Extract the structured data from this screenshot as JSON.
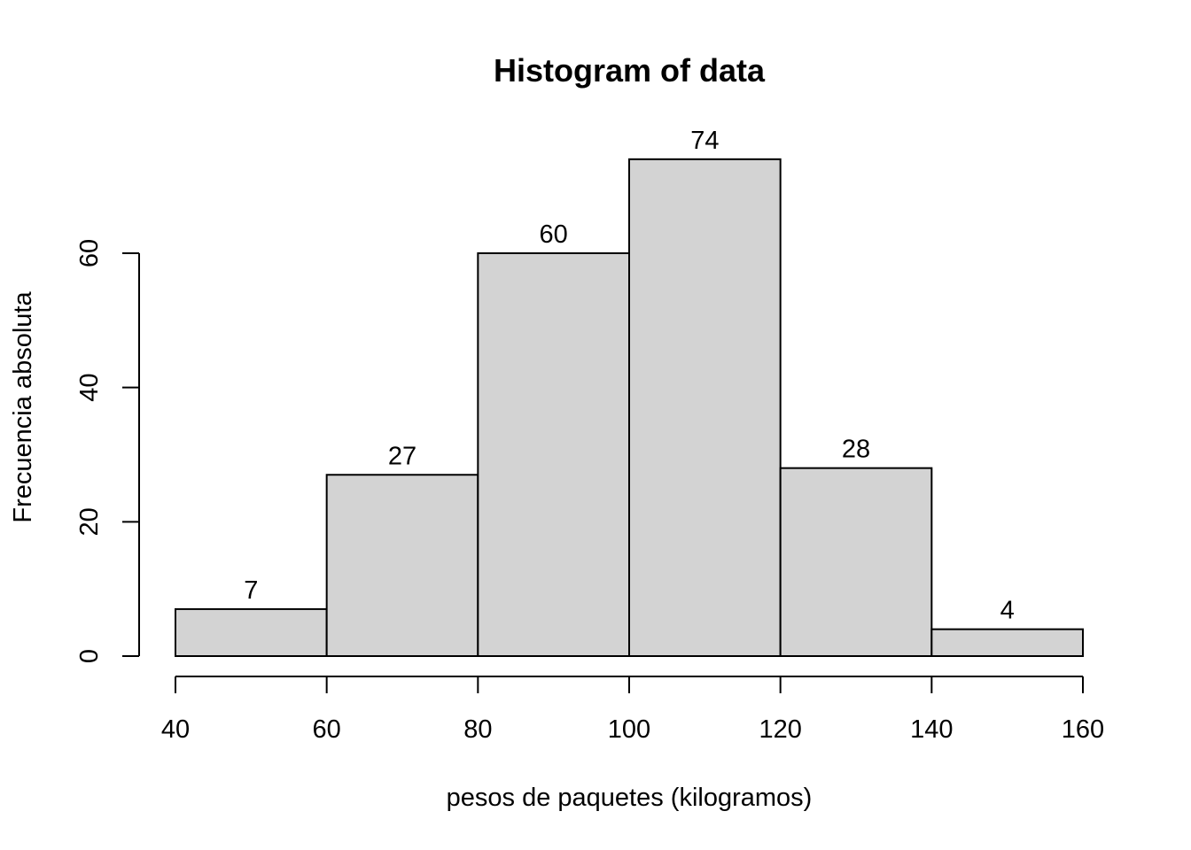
{
  "chart_data": {
    "type": "bar",
    "title": "Histogram of data",
    "xlabel": "pesos de paquetes (kilogramos)",
    "ylabel": "Frecuencia absoluta",
    "bins": [
      {
        "start": 40,
        "end": 60,
        "count": 7
      },
      {
        "start": 60,
        "end": 80,
        "count": 27
      },
      {
        "start": 80,
        "end": 100,
        "count": 60
      },
      {
        "start": 100,
        "end": 120,
        "count": 74
      },
      {
        "start": 120,
        "end": 140,
        "count": 28
      },
      {
        "start": 140,
        "end": 160,
        "count": 4
      }
    ],
    "xticks": [
      40,
      60,
      80,
      100,
      120,
      140,
      160
    ],
    "yticks": [
      0,
      20,
      40,
      60
    ],
    "xlim": [
      40,
      160
    ],
    "ylim": [
      0,
      74
    ],
    "grid": false,
    "colors": {
      "bar_fill": "#d3d3d3",
      "bar_stroke": "#000000"
    }
  }
}
